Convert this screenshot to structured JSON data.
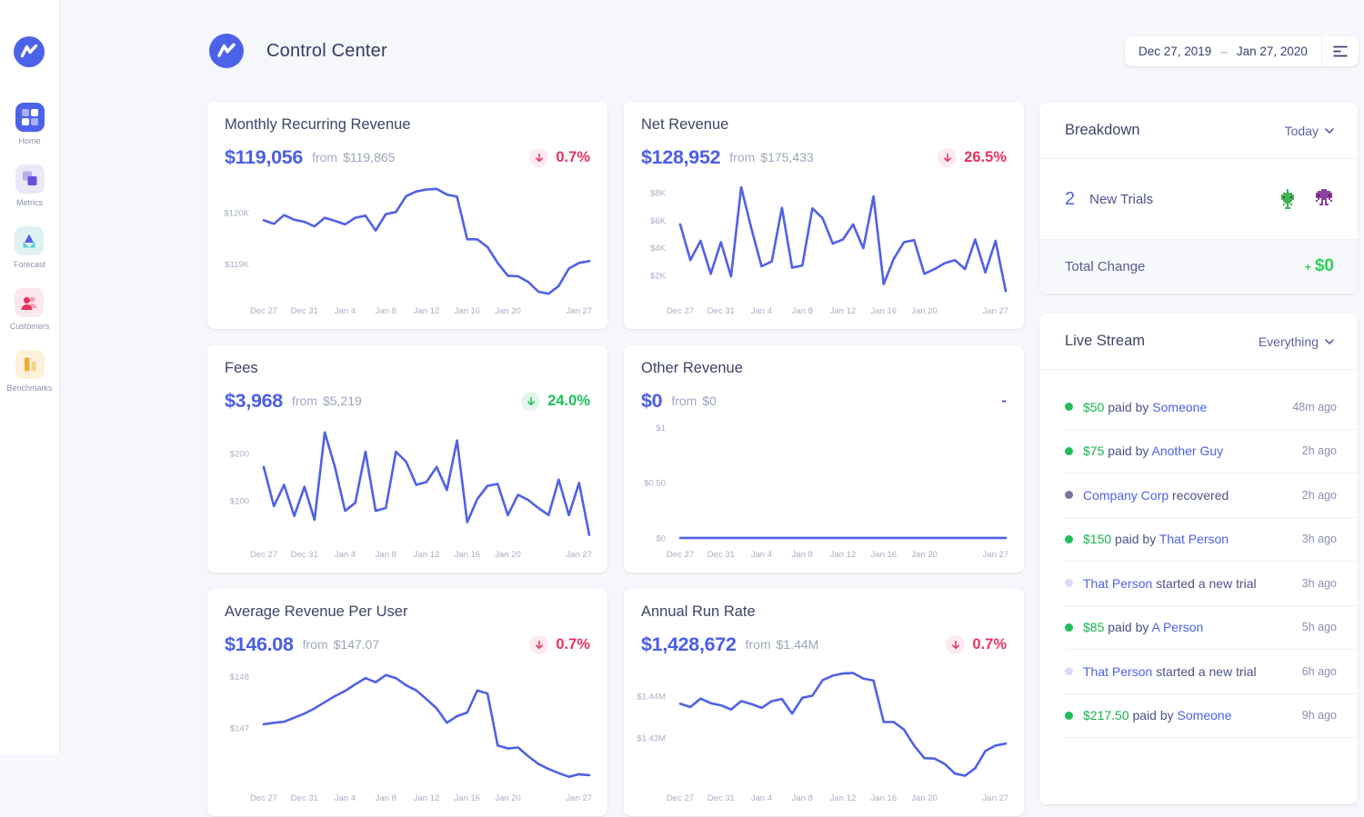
{
  "theme": {
    "accent": "#4e61e6",
    "line": "#5061e5",
    "red": "#e8325e",
    "green": "#17c156"
  },
  "sidebar": {
    "items": [
      {
        "id": "home",
        "label": "Home",
        "icon": "home-grid-icon",
        "active": true
      },
      {
        "id": "metrics",
        "label": "Metrics",
        "icon": "metrics-squares-icon",
        "active": false
      },
      {
        "id": "forecast",
        "label": "Forecast",
        "icon": "forecast-triangles-icon",
        "active": false
      },
      {
        "id": "customers",
        "label": "Customers",
        "icon": "customers-people-icon",
        "active": false
      },
      {
        "id": "benchmarks",
        "label": "Benchmarks",
        "icon": "benchmarks-bars-icon",
        "active": false
      }
    ]
  },
  "header": {
    "title": "Control Center",
    "date_range": {
      "start": "Dec 27, 2019",
      "separator": "–",
      "end": "Jan 27, 2020"
    }
  },
  "cards": [
    {
      "id": "mrr",
      "title": "Monthly Recurring Revenue",
      "value": "$119,056",
      "from_label": "from",
      "from_value": "$119,865",
      "change": {
        "direction": "down",
        "pct": "0.7%",
        "tone": "negative"
      }
    },
    {
      "id": "net-revenue",
      "title": "Net Revenue",
      "value": "$128,952",
      "from_label": "from",
      "from_value": "$175,433",
      "change": {
        "direction": "down",
        "pct": "26.5%",
        "tone": "negative"
      }
    },
    {
      "id": "fees",
      "title": "Fees",
      "value": "$3,968",
      "from_label": "from",
      "from_value": "$5,219",
      "change": {
        "direction": "down",
        "pct": "24.0%",
        "tone": "positive"
      }
    },
    {
      "id": "other-revenue",
      "title": "Other Revenue",
      "value": "$0",
      "from_label": "from",
      "from_value": "$0",
      "change": {
        "direction": "none",
        "pct": "-",
        "tone": "none"
      }
    },
    {
      "id": "arpu",
      "title": "Average Revenue Per User",
      "value": "$146.08",
      "from_label": "from",
      "from_value": "$147.07",
      "change": {
        "direction": "down",
        "pct": "0.7%",
        "tone": "negative"
      }
    },
    {
      "id": "arr",
      "title": "Annual Run Rate",
      "value": "$1,428,672",
      "from_label": "from",
      "from_value": "$1.44M",
      "change": {
        "direction": "down",
        "pct": "0.7%",
        "tone": "negative"
      }
    }
  ],
  "chart_data": [
    {
      "type": "line",
      "title": "Monthly Recurring Revenue",
      "ylabel": "USD",
      "ylim": [
        118300,
        120600
      ],
      "yticks": [
        {
          "label": "$120K",
          "value": 120000
        },
        {
          "label": "$119K",
          "value": 119000
        }
      ],
      "xticks": [
        {
          "label": "Dec 27",
          "day": 0
        },
        {
          "label": "Dec 31",
          "day": 4
        },
        {
          "label": "Jan 4",
          "day": 8
        },
        {
          "label": "Jan 8",
          "day": 12
        },
        {
          "label": "Jan 12",
          "day": 16
        },
        {
          "label": "Jan 16",
          "day": 20
        },
        {
          "label": "Jan 20",
          "day": 24
        },
        {
          "label": "Jan 27",
          "day": 31
        }
      ],
      "values": [
        119850,
        119780,
        119950,
        119860,
        119820,
        119730,
        119900,
        119840,
        119770,
        119900,
        119940,
        119650,
        119970,
        120010,
        120320,
        120410,
        120450,
        120460,
        120350,
        120310,
        119480,
        119480,
        119330,
        119020,
        118770,
        118760,
        118650,
        118460,
        118420,
        118570,
        118910,
        119020,
        119056
      ]
    },
    {
      "type": "line",
      "title": "Net Revenue",
      "ylabel": "USD",
      "ylim": [
        200,
        8800
      ],
      "yticks": [
        {
          "label": "$8K",
          "value": 8000
        },
        {
          "label": "$6K",
          "value": 6000
        },
        {
          "label": "$4K",
          "value": 4000
        },
        {
          "label": "$2K",
          "value": 2000
        }
      ],
      "xticks": [
        {
          "label": "Dec 27",
          "day": 0
        },
        {
          "label": "Dec 31",
          "day": 4
        },
        {
          "label": "Jan 4",
          "day": 8
        },
        {
          "label": "Jan 8",
          "day": 12
        },
        {
          "label": "Jan 12",
          "day": 16
        },
        {
          "label": "Jan 16",
          "day": 20
        },
        {
          "label": "Jan 20",
          "day": 24
        },
        {
          "label": "Jan 27",
          "day": 31
        }
      ],
      "values": [
        5700,
        3100,
        4500,
        2100,
        4400,
        1900,
        8400,
        5400,
        2650,
        3000,
        6900,
        2550,
        2700,
        6860,
        6150,
        4300,
        4600,
        5700,
        3960,
        7730,
        1350,
        3200,
        4400,
        4550,
        2100,
        2440,
        2870,
        3100,
        2440,
        4600,
        2200,
        4500,
        850
      ]
    },
    {
      "type": "line",
      "title": "Fees",
      "ylabel": "USD",
      "ylim": [
        10,
        260
      ],
      "yticks": [
        {
          "label": "$200",
          "value": 200
        },
        {
          "label": "$100",
          "value": 100
        }
      ],
      "xticks": [
        {
          "label": "Dec 27",
          "day": 0
        },
        {
          "label": "Dec 31",
          "day": 4
        },
        {
          "label": "Jan 4",
          "day": 8
        },
        {
          "label": "Jan 8",
          "day": 12
        },
        {
          "label": "Jan 12",
          "day": 16
        },
        {
          "label": "Jan 16",
          "day": 20
        },
        {
          "label": "Jan 20",
          "day": 24
        },
        {
          "label": "Jan 27",
          "day": 31
        }
      ],
      "values": [
        172,
        89,
        134,
        68,
        130,
        60,
        245,
        172,
        79,
        96,
        204,
        79,
        85,
        204,
        183,
        134,
        140,
        172,
        123,
        228,
        55,
        104,
        132,
        136,
        70,
        113,
        102,
        85,
        70,
        145,
        70,
        138,
        28
      ]
    },
    {
      "type": "line",
      "title": "Other Revenue",
      "ylabel": "USD",
      "ylim": [
        -0.05,
        1.02
      ],
      "yticks": [
        {
          "label": "$1",
          "value": 1
        },
        {
          "label": "$0.50",
          "value": 0.5
        },
        {
          "label": "$0",
          "value": 0
        }
      ],
      "xticks": [
        {
          "label": "Dec 27",
          "day": 0
        },
        {
          "label": "Dec 31",
          "day": 4
        },
        {
          "label": "Jan 4",
          "day": 8
        },
        {
          "label": "Jan 8",
          "day": 12
        },
        {
          "label": "Jan 12",
          "day": 16
        },
        {
          "label": "Jan 16",
          "day": 20
        },
        {
          "label": "Jan 20",
          "day": 24
        },
        {
          "label": "Jan 27",
          "day": 31
        }
      ],
      "values": [
        0,
        0,
        0,
        0,
        0,
        0,
        0,
        0,
        0,
        0,
        0,
        0,
        0,
        0,
        0,
        0,
        0,
        0,
        0,
        0,
        0,
        0,
        0,
        0,
        0,
        0,
        0,
        0,
        0,
        0,
        0,
        0,
        0
      ]
    },
    {
      "type": "line",
      "title": "Average Revenue Per User",
      "ylabel": "USD",
      "ylim": [
        145.85,
        148.15
      ],
      "yticks": [
        {
          "label": "$148",
          "value": 148
        },
        {
          "label": "$147",
          "value": 147
        }
      ],
      "xticks": [
        {
          "label": "Dec 27",
          "day": 0
        },
        {
          "label": "Dec 31",
          "day": 4
        },
        {
          "label": "Jan 4",
          "day": 8
        },
        {
          "label": "Jan 8",
          "day": 12
        },
        {
          "label": "Jan 12",
          "day": 16
        },
        {
          "label": "Jan 16",
          "day": 20
        },
        {
          "label": "Jan 20",
          "day": 24
        },
        {
          "label": "Jan 27",
          "day": 31
        }
      ],
      "values": [
        147.07,
        147.1,
        147.12,
        147.2,
        147.28,
        147.38,
        147.5,
        147.62,
        147.72,
        147.85,
        147.97,
        147.89,
        148.03,
        147.97,
        147.83,
        147.73,
        147.56,
        147.38,
        147.1,
        147.23,
        147.3,
        147.73,
        147.67,
        146.66,
        146.6,
        146.62,
        146.45,
        146.3,
        146.2,
        146.12,
        146.05,
        146.1,
        146.08
      ]
    },
    {
      "type": "line",
      "title": "Annual Run Rate",
      "ylabel": "USD",
      "ylim": [
        1418300,
        1446500
      ],
      "yticks": [
        {
          "label": "$1.44M",
          "value": 1440000
        },
        {
          "label": "$1.43M",
          "value": 1430000
        }
      ],
      "xticks": [
        {
          "label": "Dec 27",
          "day": 0
        },
        {
          "label": "Dec 31",
          "day": 4
        },
        {
          "label": "Jan 4",
          "day": 8
        },
        {
          "label": "Jan 8",
          "day": 12
        },
        {
          "label": "Jan 12",
          "day": 16
        },
        {
          "label": "Jan 16",
          "day": 20
        },
        {
          "label": "Jan 20",
          "day": 24
        },
        {
          "label": "Jan 27",
          "day": 31
        }
      ],
      "values": [
        1438200,
        1437400,
        1439400,
        1438300,
        1437800,
        1436800,
        1438800,
        1438100,
        1437200,
        1438800,
        1439300,
        1435800,
        1439600,
        1440100,
        1443800,
        1444900,
        1445400,
        1445500,
        1444200,
        1443700,
        1433800,
        1433800,
        1432000,
        1428200,
        1425200,
        1425100,
        1423800,
        1421500,
        1421000,
        1422800,
        1426900,
        1428200,
        1428672
      ]
    }
  ],
  "breakdown": {
    "title": "Breakdown",
    "filter": "Today",
    "rows": [
      {
        "count": "2",
        "label": "New Trials",
        "avatars": [
          "green-alien",
          "purple-invader"
        ]
      }
    ],
    "total_label": "Total Change",
    "total_plus": "+",
    "total_amount": "$0"
  },
  "livestream": {
    "title": "Live Stream",
    "filter": "Everything",
    "items": [
      {
        "dot": "green",
        "parts": [
          {
            "text": "$50",
            "style": "amount"
          },
          {
            "text": " paid by ",
            "style": "plain"
          },
          {
            "text": "Someone",
            "style": "link"
          }
        ],
        "time": "48m ago"
      },
      {
        "dot": "green",
        "parts": [
          {
            "text": "$75",
            "style": "amount"
          },
          {
            "text": " paid by ",
            "style": "plain"
          },
          {
            "text": "Another Guy",
            "style": "link"
          }
        ],
        "time": "2h ago"
      },
      {
        "dot": "slate",
        "parts": [
          {
            "text": "Company Corp",
            "style": "link"
          },
          {
            "text": " recovered",
            "style": "plain"
          }
        ],
        "time": "2h ago"
      },
      {
        "dot": "green",
        "parts": [
          {
            "text": "$150",
            "style": "amount"
          },
          {
            "text": " paid by ",
            "style": "plain"
          },
          {
            "text": "That Person",
            "style": "link"
          }
        ],
        "time": "3h ago"
      },
      {
        "dot": "lavender",
        "parts": [
          {
            "text": "That Person",
            "style": "link"
          },
          {
            "text": " started a new trial",
            "style": "plain"
          }
        ],
        "time": "3h ago"
      },
      {
        "dot": "green",
        "parts": [
          {
            "text": "$85",
            "style": "amount"
          },
          {
            "text": " paid by ",
            "style": "plain"
          },
          {
            "text": "A Person",
            "style": "link"
          }
        ],
        "time": "5h ago"
      },
      {
        "dot": "lavender",
        "parts": [
          {
            "text": "That Person",
            "style": "link"
          },
          {
            "text": " started a new trial",
            "style": "plain"
          }
        ],
        "time": "6h ago"
      },
      {
        "dot": "green",
        "parts": [
          {
            "text": "$217.50",
            "style": "amount"
          },
          {
            "text": " paid by ",
            "style": "plain"
          },
          {
            "text": "Someone",
            "style": "link"
          }
        ],
        "time": "9h ago"
      }
    ]
  }
}
